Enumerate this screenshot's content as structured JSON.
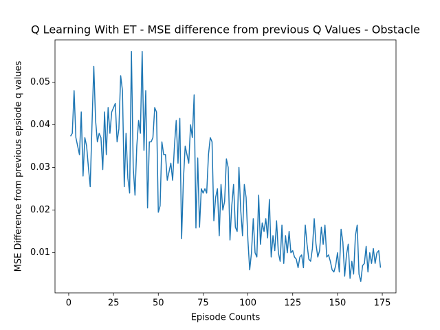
{
  "chart_data": {
    "type": "line",
    "title": "Q Learning With ET - MSE difference from previous Q Values - Obstacle",
    "x_label": "Episode Counts",
    "y_label": "MSE Difference from previous epsiode q values",
    "color": "#1f77b4",
    "x": [
      1,
      2,
      3,
      4,
      5,
      6,
      7,
      8,
      9,
      10,
      11,
      12,
      13,
      14,
      15,
      16,
      17,
      18,
      19,
      20,
      21,
      22,
      23,
      24,
      25,
      26,
      27,
      28,
      29,
      30,
      31,
      32,
      33,
      34,
      35,
      36,
      37,
      38,
      39,
      40,
      41,
      42,
      43,
      44,
      45,
      46,
      47,
      48,
      49,
      50,
      51,
      52,
      53,
      54,
      55,
      56,
      57,
      58,
      59,
      60,
      61,
      62,
      63,
      64,
      65,
      66,
      67,
      68,
      69,
      70,
      71,
      72,
      73,
      74,
      75,
      76,
      77,
      78,
      79,
      80,
      81,
      82,
      83,
      84,
      85,
      86,
      87,
      88,
      89,
      90,
      91,
      92,
      93,
      94,
      95,
      96,
      97,
      98,
      99,
      100,
      101,
      102,
      103,
      104,
      105,
      106,
      107,
      108,
      109,
      110,
      111,
      112,
      113,
      114,
      115,
      116,
      117,
      118,
      119,
      120,
      121,
      122,
      123,
      124,
      125,
      126,
      127,
      128,
      129,
      130,
      131,
      132,
      133,
      134,
      135,
      136,
      137,
      138,
      139,
      140,
      141,
      142,
      143,
      144,
      145,
      146,
      147,
      148,
      149,
      150,
      151,
      152,
      153,
      154,
      155,
      156,
      157,
      158,
      159,
      160,
      161,
      162,
      163,
      164,
      165,
      166,
      167,
      168,
      169,
      170,
      171,
      172,
      173,
      174
    ],
    "values": [
      0.0373,
      0.038,
      0.048,
      0.037,
      0.035,
      0.033,
      0.043,
      0.028,
      0.037,
      0.035,
      0.03,
      0.0255,
      0.04,
      0.0537,
      0.041,
      0.036,
      0.038,
      0.037,
      0.0295,
      0.043,
      0.033,
      0.044,
      0.038,
      0.043,
      0.044,
      0.045,
      0.036,
      0.039,
      0.0515,
      0.048,
      0.0255,
      0.038,
      0.0275,
      0.024,
      0.0572,
      0.03,
      0.0235,
      0.035,
      0.041,
      0.038,
      0.0572,
      0.034,
      0.048,
      0.0205,
      0.036,
      0.036,
      0.037,
      0.044,
      0.043,
      0.0195,
      0.021,
      0.036,
      0.033,
      0.033,
      0.027,
      0.029,
      0.031,
      0.027,
      0.035,
      0.041,
      0.031,
      0.0415,
      0.0133,
      0.027,
      0.035,
      0.033,
      0.031,
      0.04,
      0.037,
      0.047,
      0.0158,
      0.0322,
      0.016,
      0.025,
      0.024,
      0.025,
      0.024,
      0.033,
      0.037,
      0.036,
      0.0175,
      0.023,
      0.025,
      0.014,
      0.026,
      0.02,
      0.022,
      0.032,
      0.03,
      0.013,
      0.021,
      0.026,
      0.016,
      0.015,
      0.03,
      0.02,
      0.014,
      0.026,
      0.023,
      0.013,
      0.006,
      0.01,
      0.018,
      0.01,
      0.009,
      0.0235,
      0.012,
      0.017,
      0.015,
      0.018,
      0.0135,
      0.0225,
      0.009,
      0.014,
      0.0105,
      0.0175,
      0.01,
      0.008,
      0.0165,
      0.0075,
      0.014,
      0.01,
      0.015,
      0.01,
      0.0105,
      0.009,
      0.0085,
      0.0065,
      0.009,
      0.0095,
      0.0065,
      0.0165,
      0.012,
      0.0085,
      0.008,
      0.011,
      0.018,
      0.012,
      0.009,
      0.0105,
      0.016,
      0.012,
      0.0165,
      0.009,
      0.0095,
      0.008,
      0.006,
      0.0055,
      0.007,
      0.01,
      0.0055,
      0.0155,
      0.0125,
      0.0045,
      0.0095,
      0.012,
      0.004,
      0.008,
      0.005,
      0.014,
      0.0165,
      0.005,
      0.0033,
      0.007,
      0.0075,
      0.0115,
      0.0055,
      0.01,
      0.0075,
      0.011,
      0.0075,
      0.01,
      0.0105,
      0.0065
    ],
    "xlim": [
      -7.65,
      182.65
    ],
    "ylim": [
      0.0006,
      0.0599
    ],
    "xticks": [
      0,
      25,
      50,
      75,
      100,
      125,
      150,
      175
    ],
    "yticks": [
      0.01,
      0.02,
      0.03,
      0.04,
      0.05
    ]
  }
}
